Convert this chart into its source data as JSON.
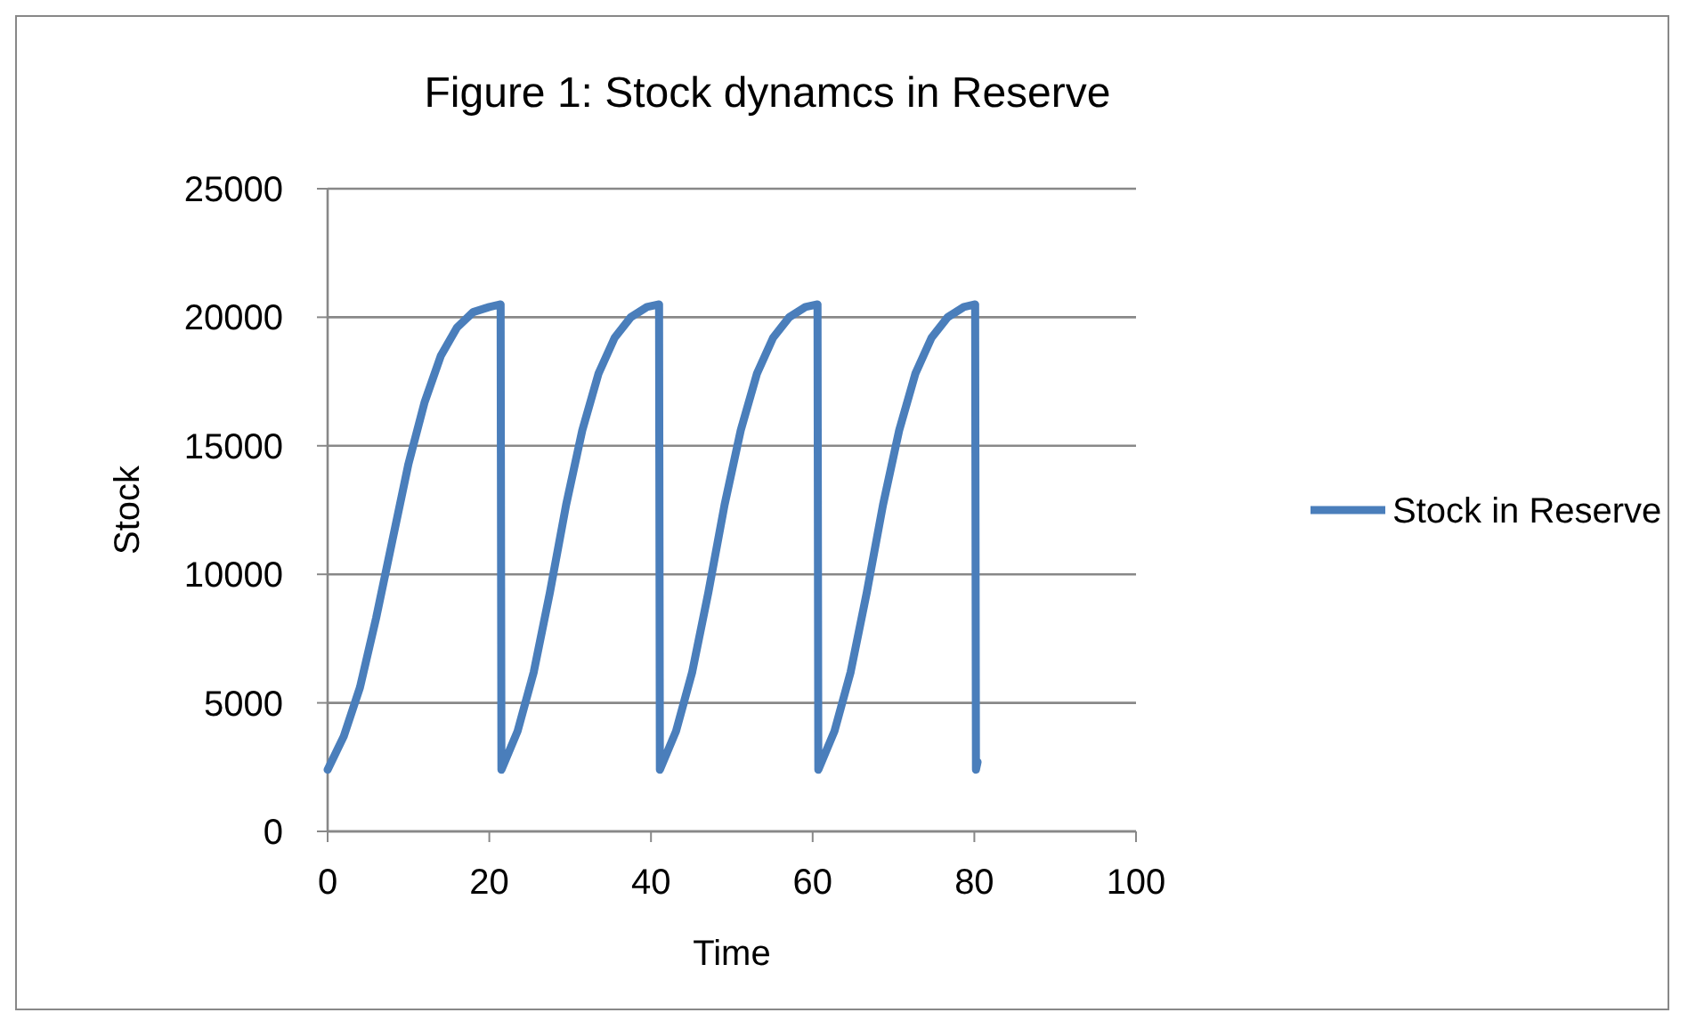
{
  "chart_data": {
    "type": "line",
    "title": "Figure 1: Stock dynamcs in Reserve",
    "xlabel": "Time",
    "ylabel": "Stock",
    "xlim": [
      0,
      100
    ],
    "xticks": [
      0,
      20,
      40,
      60,
      80,
      100
    ],
    "ylim": [
      0,
      25000
    ],
    "yticks": [
      0,
      5000,
      10000,
      15000,
      20000,
      25000
    ],
    "grid": "y",
    "legend": "right",
    "marker": "none",
    "line_style": "solid",
    "series": [
      {
        "name": "Stock in Reserve",
        "color": "#4a7ebb",
        "x": [
          0,
          2,
          4,
          6,
          8,
          10,
          12,
          14,
          16,
          18,
          20,
          21.4,
          21.5,
          23.5,
          25.5,
          27.5,
          29.5,
          31.5,
          33.5,
          35.5,
          37.5,
          39.5,
          41,
          41.1,
          43.1,
          45.1,
          47.1,
          49.1,
          51.1,
          53.1,
          55.1,
          57.1,
          59.1,
          60.6,
          60.7,
          62.7,
          64.7,
          66.7,
          68.7,
          70.7,
          72.7,
          74.7,
          76.7,
          78.7,
          80.1,
          80.2,
          80.4
        ],
        "values": [
          2400,
          3700,
          5600,
          8300,
          11300,
          14300,
          16700,
          18500,
          19600,
          20200,
          20400,
          20500,
          2400,
          3900,
          6200,
          9300,
          12700,
          15600,
          17800,
          19200,
          20000,
          20400,
          20500,
          2400,
          3900,
          6200,
          9300,
          12700,
          15600,
          17800,
          19200,
          20000,
          20400,
          20500,
          2400,
          3900,
          6200,
          9300,
          12700,
          15600,
          17800,
          19200,
          20000,
          20400,
          20500,
          2400,
          2700
        ]
      }
    ]
  }
}
